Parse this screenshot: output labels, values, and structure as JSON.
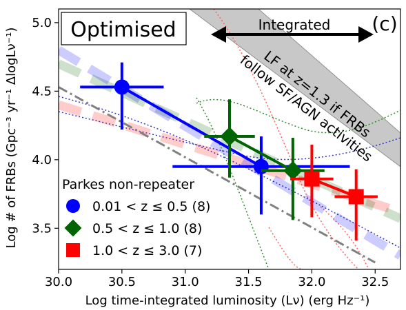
{
  "chart_data": {
    "type": "scatter",
    "panel_label": "(c)",
    "title_box": "Optimised",
    "xlabel": "Log time-integrated luminosity ($L_\\nu$) (erg Hz$^{-1}$)",
    "xlabel_display": "Log time-integrated luminosity (Lν) (erg Hz⁻¹)",
    "ylabel_display": "Log # of FRBs (Gpc⁻³ yr⁻¹ ΔlogLν⁻¹)",
    "xlim": [
      30.0,
      32.7
    ],
    "ylim": [
      3.2,
      5.1
    ],
    "xticks": [
      30.0,
      30.5,
      31.0,
      31.5,
      32.0,
      32.5
    ],
    "yticks": [
      3.5,
      4.0,
      4.5,
      5.0
    ],
    "xtick_labels": [
      "30.0",
      "30.5",
      "31.0",
      "31.5",
      "32.0",
      "32.5"
    ],
    "ytick_labels": [
      "3.5",
      "4.0",
      "4.5",
      "5.0"
    ],
    "integrated_label": "Integrated",
    "band_label_line1": "LF at z=1.3 if FRBs",
    "band_label_line2": "follow SF/AGN activities",
    "legend_title": "Parkes non-repeater",
    "series": [
      {
        "name": "0.01 < z ≤ 0.5 (8)",
        "color": "#0000ff",
        "marker": "circle",
        "points": [
          {
            "x": 30.5,
            "y": 4.53,
            "xerr": [
              0.33,
              0.33
            ],
            "yerr": [
              0.31,
              0.18
            ]
          },
          {
            "x": 31.6,
            "y": 3.95,
            "xerr": [
              0.7,
              0.7
            ],
            "yerr": [
              0.35,
              0.22
            ]
          }
        ]
      },
      {
        "name": "0.5 < z ≤ 1.0 (8)",
        "color": "#006400",
        "marker": "diamond",
        "points": [
          {
            "x": 31.35,
            "y": 4.17,
            "xerr": [
              0.2,
              0.2
            ],
            "yerr": [
              0.3,
              0.27
            ]
          },
          {
            "x": 31.85,
            "y": 3.92,
            "xerr": [
              0.25,
              0.25
            ],
            "yerr": [
              0.36,
              0.24
            ]
          }
        ]
      },
      {
        "name": "1.0 < z ≤ 3.0 (7)",
        "color": "#ff0000",
        "marker": "square",
        "points": [
          {
            "x": 32.0,
            "y": 3.86,
            "xerr": [
              0.17,
              0.17
            ],
            "yerr": [
              0.28,
              0.25
            ]
          },
          {
            "x": 32.35,
            "y": 3.73,
            "xerr": [
              0.17,
              0.17
            ],
            "yerr": [
              0.32,
              0.2
            ]
          }
        ]
      }
    ],
    "model_curves": [
      {
        "color": "#ff0000",
        "style": "dashed-thick-faint",
        "x": [
          30.0,
          32.7
        ],
        "y": [
          4.4,
          3.62
        ]
      },
      {
        "color": "#006400",
        "style": "dashed-thick-faint",
        "x": [
          30.0,
          32.7
        ],
        "y": [
          4.7,
          3.57
        ]
      },
      {
        "color": "#0000ff",
        "style": "dashed-thick-faint",
        "x": [
          30.0,
          32.7
        ],
        "y": [
          4.8,
          3.3
        ]
      },
      {
        "color": "#808080",
        "style": "dashdot",
        "x": [
          30.0,
          32.5
        ],
        "y": [
          4.53,
          3.25
        ]
      }
    ]
  }
}
